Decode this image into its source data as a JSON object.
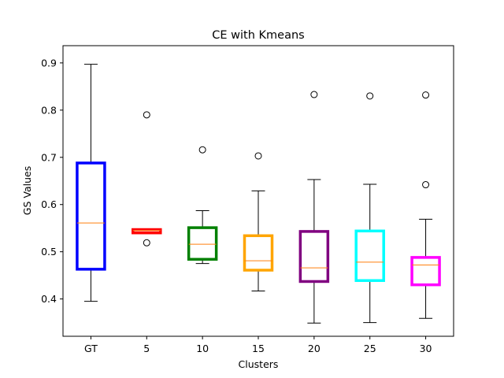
{
  "chart_data": {
    "type": "boxplot",
    "title": "CE with Kmeans",
    "xlabel": "Clusters",
    "ylabel": "GS Values",
    "ylim": [
      0.321,
      0.9365
    ],
    "yticks": [
      0.4,
      0.5,
      0.6,
      0.7,
      0.8,
      0.9
    ],
    "yticklabels": [
      "0.4",
      "0.5",
      "0.6",
      "0.7",
      "0.8",
      "0.9"
    ],
    "grid": false,
    "median_color": "#ff7f0e",
    "series": [
      {
        "category": "GT",
        "color": "#0000ff",
        "whisker_low": 0.395,
        "q1": 0.463,
        "median": 0.561,
        "q3": 0.688,
        "whisker_high": 0.897,
        "outliers": []
      },
      {
        "category": "5",
        "color": "#ff0000",
        "whisker_low": 0.54,
        "q1": 0.54,
        "median": 0.545,
        "q3": 0.547,
        "whisker_high": 0.547,
        "outliers": [
          0.519,
          0.79
        ]
      },
      {
        "category": "10",
        "color": "#008000",
        "whisker_low": 0.475,
        "q1": 0.484,
        "median": 0.516,
        "q3": 0.551,
        "whisker_high": 0.587,
        "outliers": [
          0.716
        ]
      },
      {
        "category": "15",
        "color": "#ffa500",
        "whisker_low": 0.417,
        "q1": 0.461,
        "median": 0.481,
        "q3": 0.534,
        "whisker_high": 0.629,
        "outliers": [
          0.703
        ]
      },
      {
        "category": "20",
        "color": "#800080",
        "whisker_low": 0.349,
        "q1": 0.437,
        "median": 0.466,
        "q3": 0.543,
        "whisker_high": 0.653,
        "outliers": [
          0.833
        ]
      },
      {
        "category": "25",
        "color": "#00ffff",
        "whisker_low": 0.35,
        "q1": 0.439,
        "median": 0.478,
        "q3": 0.544,
        "whisker_high": 0.643,
        "outliers": [
          0.83
        ]
      },
      {
        "category": "30",
        "color": "#ff00ff",
        "whisker_low": 0.359,
        "q1": 0.43,
        "median": 0.472,
        "q3": 0.488,
        "whisker_high": 0.569,
        "outliers": [
          0.642,
          0.832
        ]
      }
    ]
  }
}
